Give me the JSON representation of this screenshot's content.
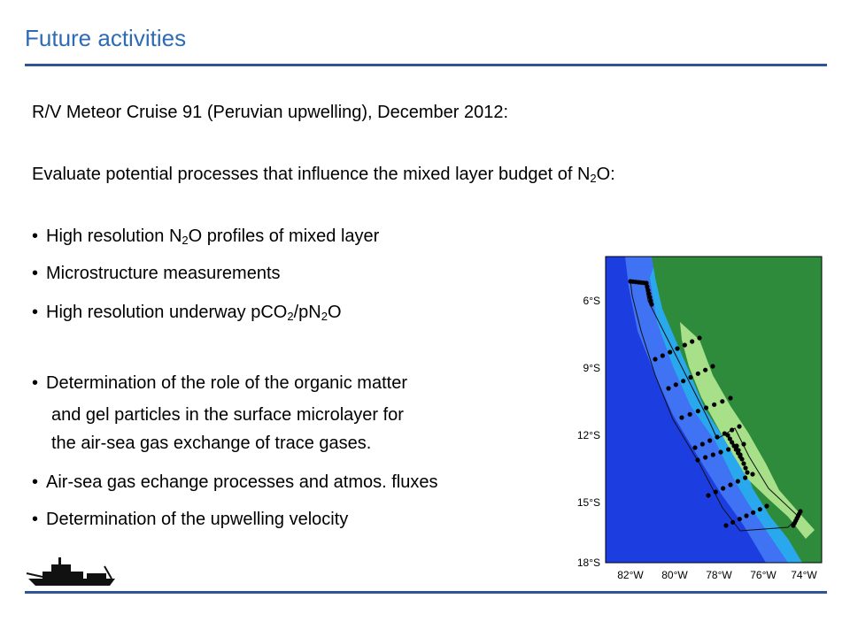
{
  "slide": {
    "title": "Future activities",
    "cruise_line": "R/V Meteor Cruise 91 (Peruvian upwelling), December 2012:",
    "evaluate": {
      "before": "Evaluate potential processes that influence the mixed layer budget  of N",
      "sub": "2",
      "after": "O:"
    },
    "bullets": [
      {
        "pre": "High resolution N",
        "sub": "2",
        "post": "O profiles of mixed layer"
      },
      {
        "pre": "Microstructure measurements"
      },
      {
        "pre": "High resolution underway pCO",
        "sub": "2",
        "mid": "/pN",
        "sub2": "2",
        "post": "O"
      },
      {
        "pre": "Determination of the role of the organic matter"
      },
      {
        "pre": "Air-sea gas echange processes and atmos. fluxes"
      },
      {
        "pre": "Determination of the upwelling velocity"
      }
    ],
    "bullet4_cont": [
      "and gel particles in the surface microlayer for",
      "the air-sea gas exchange of trace gases."
    ]
  },
  "map": {
    "lat_labels": [
      "6°S",
      "9°S",
      "12°S",
      "15°S",
      "18°S"
    ],
    "lon_labels": [
      "82°W",
      "80°W",
      "78°W",
      "76°W",
      "74°W"
    ],
    "colors": {
      "deep": "#1c3ee0",
      "mid": "#3f73f3",
      "shelf": "#2aa8ee",
      "land_low": "#2e8b3c",
      "land_high": "#a8e08a"
    }
  }
}
